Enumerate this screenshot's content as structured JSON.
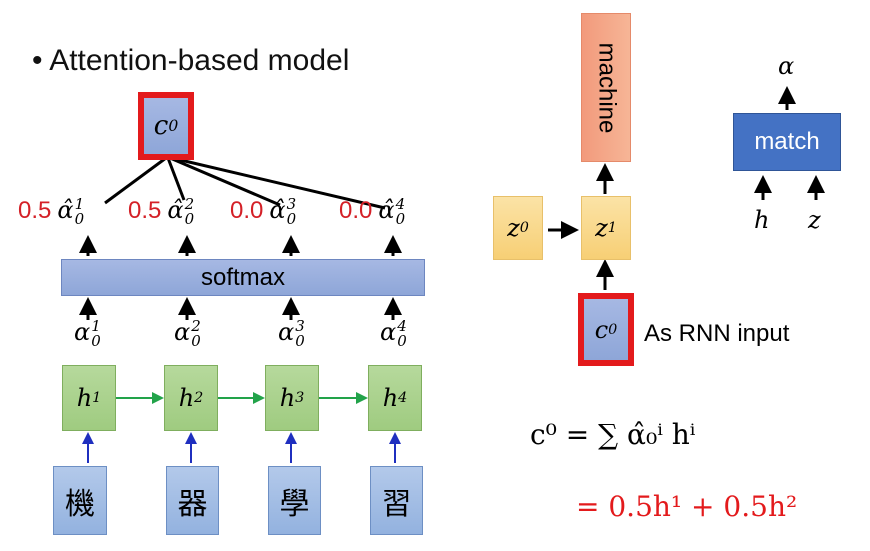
{
  "title": "Attention-based model",
  "context_label": "c",
  "context_sup": "0",
  "weights": [
    {
      "value": "0.5",
      "sup": "1",
      "sub": "0"
    },
    {
      "value": "0.5",
      "sup": "2",
      "sub": "0"
    },
    {
      "value": "0.0",
      "sup": "3",
      "sub": "0"
    },
    {
      "value": "0.0",
      "sup": "4",
      "sub": "0"
    }
  ],
  "softmax": "softmax",
  "alphas": [
    {
      "sup": "1",
      "sub": "0"
    },
    {
      "sup": "2",
      "sub": "0"
    },
    {
      "sup": "3",
      "sub": "0"
    },
    {
      "sup": "4",
      "sub": "0"
    }
  ],
  "hidden": [
    {
      "sup": "1"
    },
    {
      "sup": "2"
    },
    {
      "sup": "3"
    },
    {
      "sup": "4"
    }
  ],
  "inputs": [
    "機",
    "器",
    "學",
    "習"
  ],
  "decoder": {
    "output": "machine",
    "z0": "0",
    "z1": "1",
    "c_sup": "0",
    "note": "As RNN input"
  },
  "match": {
    "label": "match",
    "out": "α",
    "in_h": "h",
    "in_z": "z"
  },
  "formula": {
    "line1": "c⁰ = ∑ α̂₀ⁱ hⁱ",
    "line2": "= 0.5h¹ + 0.5h²"
  },
  "colors": {
    "red": "#e31a1c",
    "match": "#4472c4",
    "machine": "#f4a582"
  }
}
